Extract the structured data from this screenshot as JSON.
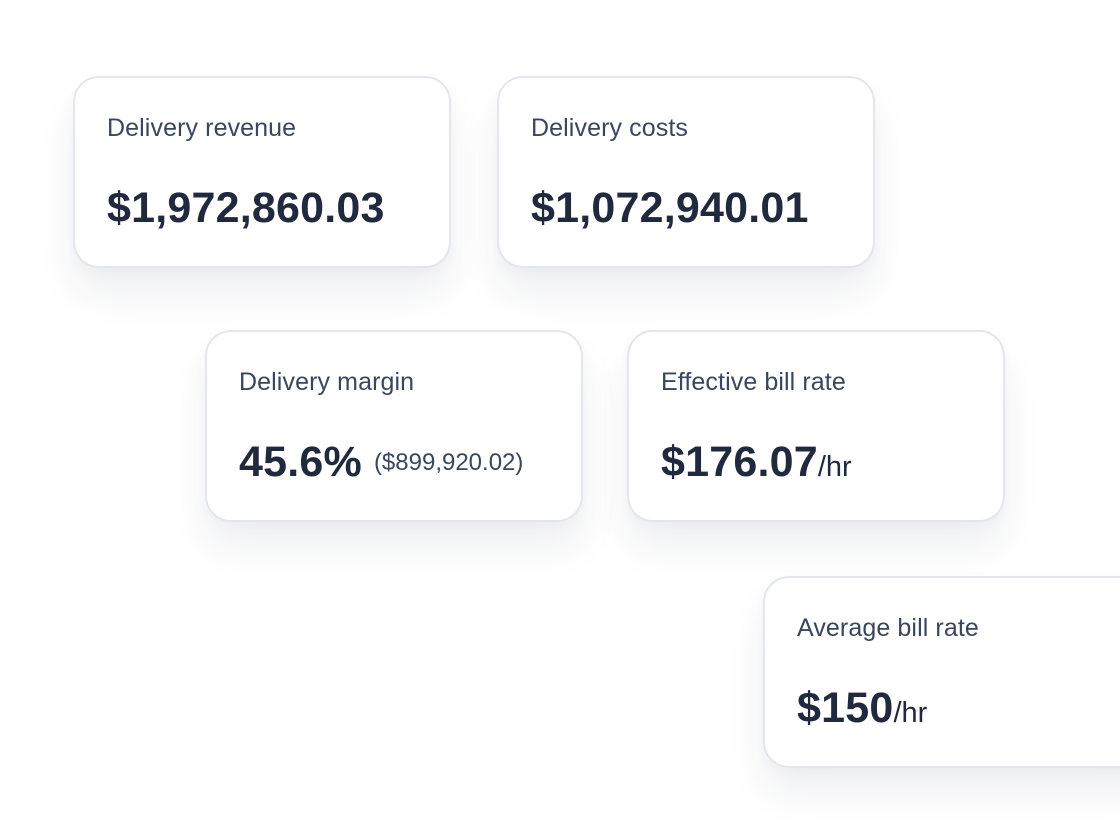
{
  "cards": {
    "revenue": {
      "label": "Delivery revenue",
      "value": "$1,972,860.03"
    },
    "costs": {
      "label": "Delivery costs",
      "value": "$1,072,940.01"
    },
    "margin": {
      "label": "Delivery margin",
      "value": "45.6%",
      "secondary": "($899,920.02)"
    },
    "effective_bill_rate": {
      "label": "Effective bill rate",
      "value": "$176.07",
      "unit": "/hr"
    },
    "average_bill_rate": {
      "label": "Average bill rate",
      "value": "$150",
      "unit": "/hr"
    }
  },
  "colors": {
    "background": "#ffffff",
    "card_border": "#e4e6ee",
    "label_text": "#3a4660",
    "value_text": "#20293d"
  }
}
